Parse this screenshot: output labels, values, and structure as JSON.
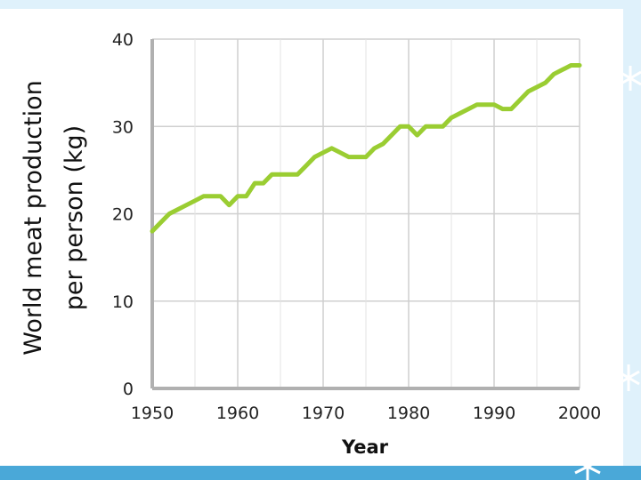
{
  "slide": {
    "background_color": "#dff1fb",
    "accent_color": "#4aa8d8",
    "decoration": "snowflake-icons"
  },
  "chart_data": {
    "type": "line",
    "title": "",
    "xlabel": "Year",
    "ylabel_lines": [
      "World meat production",
      "per person (kg)"
    ],
    "xlim": [
      1950,
      2000
    ],
    "ylim": [
      0,
      40
    ],
    "x_ticks": [
      "1950",
      "1960",
      "1970",
      "1980",
      "1990",
      "2000"
    ],
    "y_ticks": [
      "0",
      "10",
      "20",
      "30",
      "40"
    ],
    "grid": true,
    "line_color": "#9acd32",
    "series": [
      {
        "x": [
          1950,
          1951,
          1952,
          1953,
          1954,
          1955,
          1956,
          1957,
          1958,
          1959,
          1960,
          1961,
          1962,
          1963,
          1964,
          1965,
          1966,
          1967,
          1968,
          1969,
          1970,
          1971,
          1972,
          1973,
          1974,
          1975,
          1976,
          1977,
          1978,
          1979,
          1980,
          1981,
          1982,
          1983,
          1984,
          1985,
          1986,
          1987,
          1988,
          1989,
          1990,
          1991,
          1992,
          1993,
          1994,
          1995,
          1996,
          1997,
          1998,
          1999,
          2000
        ],
        "y": [
          18,
          19,
          20,
          20.5,
          21,
          21.5,
          22,
          22,
          22,
          21,
          22,
          22,
          23.5,
          23.5,
          24.5,
          24.5,
          24.5,
          24.5,
          25.5,
          26.5,
          27,
          27.5,
          27,
          26.5,
          26.5,
          26.5,
          27.5,
          28,
          29,
          30,
          30,
          29,
          30,
          30,
          30,
          31,
          31.5,
          32,
          32.5,
          32.5,
          32.5,
          32,
          32,
          33,
          34,
          34.5,
          35,
          36,
          36.5,
          37,
          37
        ]
      }
    ]
  }
}
